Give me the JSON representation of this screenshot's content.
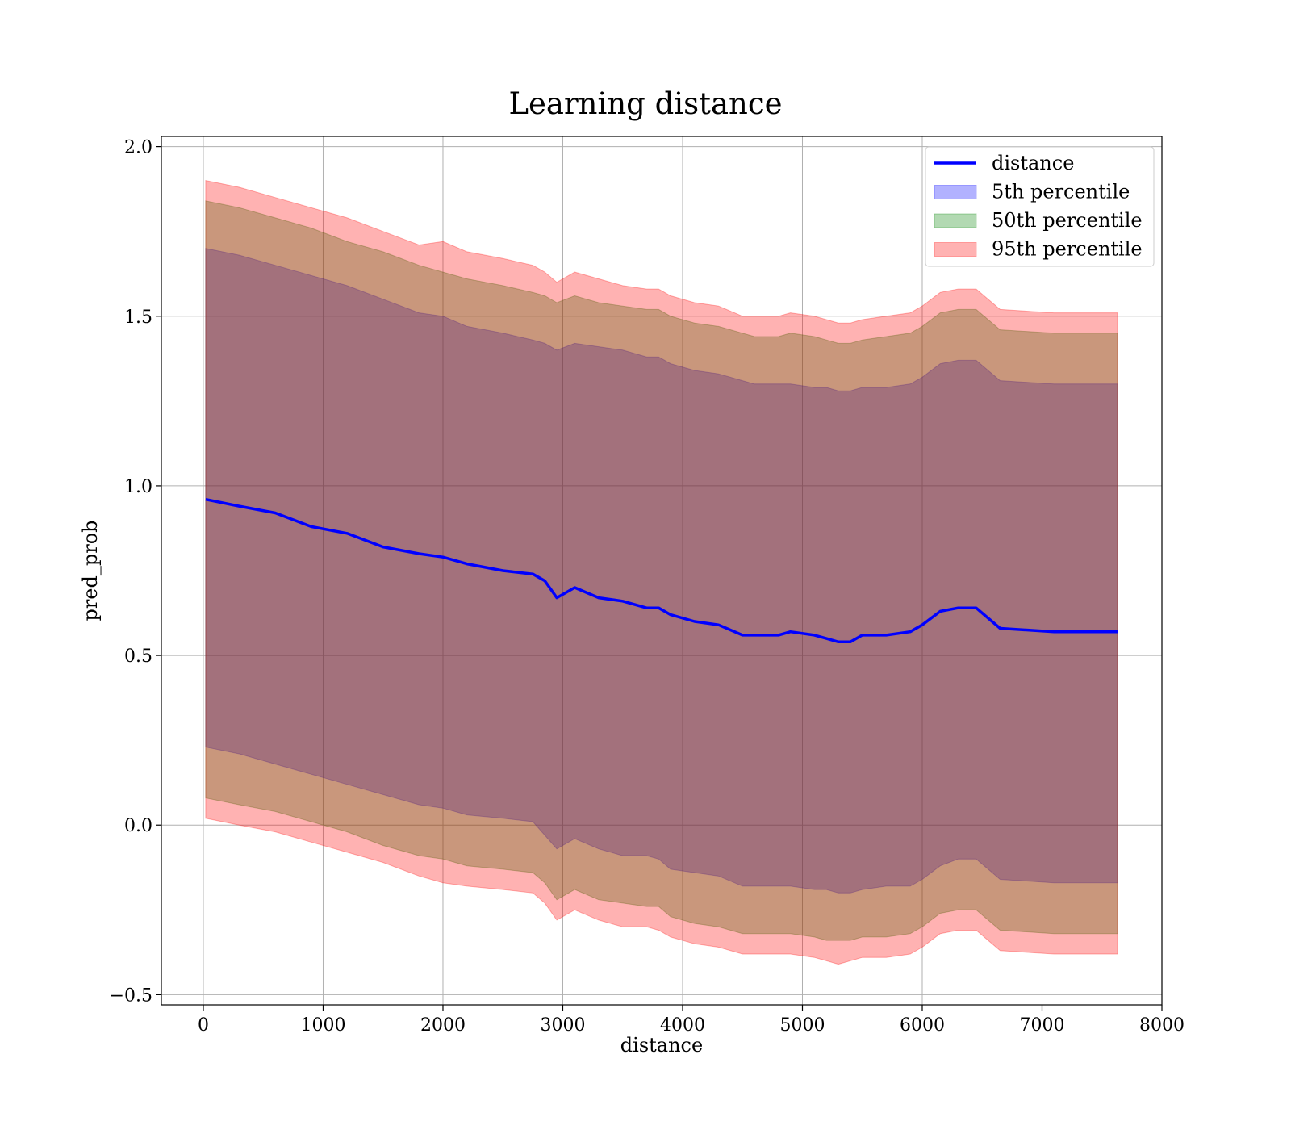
{
  "chart_data": {
    "type": "line",
    "title": "Learning distance",
    "xlabel": "distance",
    "ylabel": "pred_prob",
    "xlim": [
      -350,
      8000
    ],
    "ylim": [
      -0.53,
      2.03
    ],
    "xticks": [
      0,
      1000,
      2000,
      3000,
      4000,
      5000,
      6000,
      7000,
      8000
    ],
    "yticks": [
      -0.5,
      0.0,
      0.5,
      1.0,
      1.5,
      2.0
    ],
    "xtick_labels": [
      "0",
      "1000",
      "2000",
      "3000",
      "4000",
      "5000",
      "6000",
      "7000",
      "8000"
    ],
    "ytick_labels": [
      "−0.5",
      "0.0",
      "0.5",
      "1.0",
      "1.5",
      "2.0"
    ],
    "grid": true,
    "legend_position": "top-right",
    "x": [
      20,
      300,
      600,
      900,
      1200,
      1500,
      1800,
      2000,
      2200,
      2500,
      2750,
      2850,
      2950,
      3100,
      3300,
      3500,
      3700,
      3800,
      3900,
      4100,
      4300,
      4500,
      4600,
      4800,
      4900,
      5100,
      5200,
      5300,
      5400,
      5500,
      5700,
      5900,
      6000,
      6150,
      6300,
      6450,
      6650,
      7100,
      7630
    ],
    "series": [
      {
        "name": "distance",
        "kind": "line",
        "color": "#0000ff",
        "values": [
          0.96,
          0.94,
          0.92,
          0.88,
          0.86,
          0.82,
          0.8,
          0.79,
          0.77,
          0.75,
          0.74,
          0.72,
          0.67,
          0.7,
          0.67,
          0.66,
          0.64,
          0.64,
          0.62,
          0.6,
          0.59,
          0.56,
          0.56,
          0.56,
          0.57,
          0.56,
          0.55,
          0.54,
          0.54,
          0.56,
          0.56,
          0.57,
          0.59,
          0.63,
          0.64,
          0.64,
          0.58,
          0.57,
          0.57
        ]
      },
      {
        "name": "5th percentile",
        "kind": "band",
        "color": "#0000ff",
        "opacity": 0.3,
        "upper": [
          1.7,
          1.68,
          1.65,
          1.62,
          1.59,
          1.55,
          1.51,
          1.5,
          1.47,
          1.45,
          1.43,
          1.42,
          1.4,
          1.42,
          1.41,
          1.4,
          1.38,
          1.38,
          1.36,
          1.34,
          1.33,
          1.31,
          1.3,
          1.3,
          1.3,
          1.29,
          1.29,
          1.28,
          1.28,
          1.29,
          1.29,
          1.3,
          1.32,
          1.36,
          1.37,
          1.37,
          1.31,
          1.3,
          1.3
        ],
        "lower": [
          0.23,
          0.21,
          0.18,
          0.15,
          0.12,
          0.09,
          0.06,
          0.05,
          0.03,
          0.02,
          0.01,
          -0.03,
          -0.07,
          -0.04,
          -0.07,
          -0.09,
          -0.09,
          -0.1,
          -0.13,
          -0.14,
          -0.15,
          -0.18,
          -0.18,
          -0.18,
          -0.18,
          -0.19,
          -0.19,
          -0.2,
          -0.2,
          -0.19,
          -0.18,
          -0.18,
          -0.16,
          -0.12,
          -0.1,
          -0.1,
          -0.16,
          -0.17,
          -0.17
        ]
      },
      {
        "name": "50th percentile",
        "kind": "band",
        "color": "#008000",
        "opacity": 0.3,
        "upper": [
          1.84,
          1.82,
          1.79,
          1.76,
          1.72,
          1.69,
          1.65,
          1.63,
          1.61,
          1.59,
          1.57,
          1.56,
          1.54,
          1.56,
          1.54,
          1.53,
          1.52,
          1.52,
          1.5,
          1.48,
          1.47,
          1.45,
          1.44,
          1.44,
          1.45,
          1.44,
          1.43,
          1.42,
          1.42,
          1.43,
          1.44,
          1.45,
          1.47,
          1.51,
          1.52,
          1.52,
          1.46,
          1.45,
          1.45
        ],
        "lower": [
          0.08,
          0.06,
          0.04,
          0.01,
          -0.02,
          -0.06,
          -0.09,
          -0.1,
          -0.12,
          -0.13,
          -0.14,
          -0.17,
          -0.22,
          -0.19,
          -0.22,
          -0.23,
          -0.24,
          -0.24,
          -0.27,
          -0.29,
          -0.3,
          -0.32,
          -0.32,
          -0.32,
          -0.32,
          -0.33,
          -0.34,
          -0.34,
          -0.34,
          -0.33,
          -0.33,
          -0.32,
          -0.3,
          -0.26,
          -0.25,
          -0.25,
          -0.31,
          -0.32,
          -0.32
        ]
      },
      {
        "name": "95th percentile",
        "kind": "band",
        "color": "#ff0000",
        "opacity": 0.3,
        "upper": [
          1.9,
          1.88,
          1.85,
          1.82,
          1.79,
          1.75,
          1.71,
          1.72,
          1.69,
          1.67,
          1.65,
          1.63,
          1.6,
          1.63,
          1.61,
          1.59,
          1.58,
          1.58,
          1.56,
          1.54,
          1.53,
          1.5,
          1.5,
          1.5,
          1.51,
          1.5,
          1.49,
          1.48,
          1.48,
          1.49,
          1.5,
          1.51,
          1.53,
          1.57,
          1.58,
          1.58,
          1.52,
          1.51,
          1.51
        ],
        "lower": [
          0.02,
          0.0,
          -0.02,
          -0.05,
          -0.08,
          -0.11,
          -0.15,
          -0.17,
          -0.18,
          -0.19,
          -0.2,
          -0.23,
          -0.28,
          -0.25,
          -0.28,
          -0.3,
          -0.3,
          -0.31,
          -0.33,
          -0.35,
          -0.36,
          -0.38,
          -0.38,
          -0.38,
          -0.38,
          -0.39,
          -0.4,
          -0.41,
          -0.4,
          -0.39,
          -0.39,
          -0.38,
          -0.36,
          -0.32,
          -0.31,
          -0.31,
          -0.37,
          -0.38,
          -0.38
        ]
      }
    ]
  }
}
